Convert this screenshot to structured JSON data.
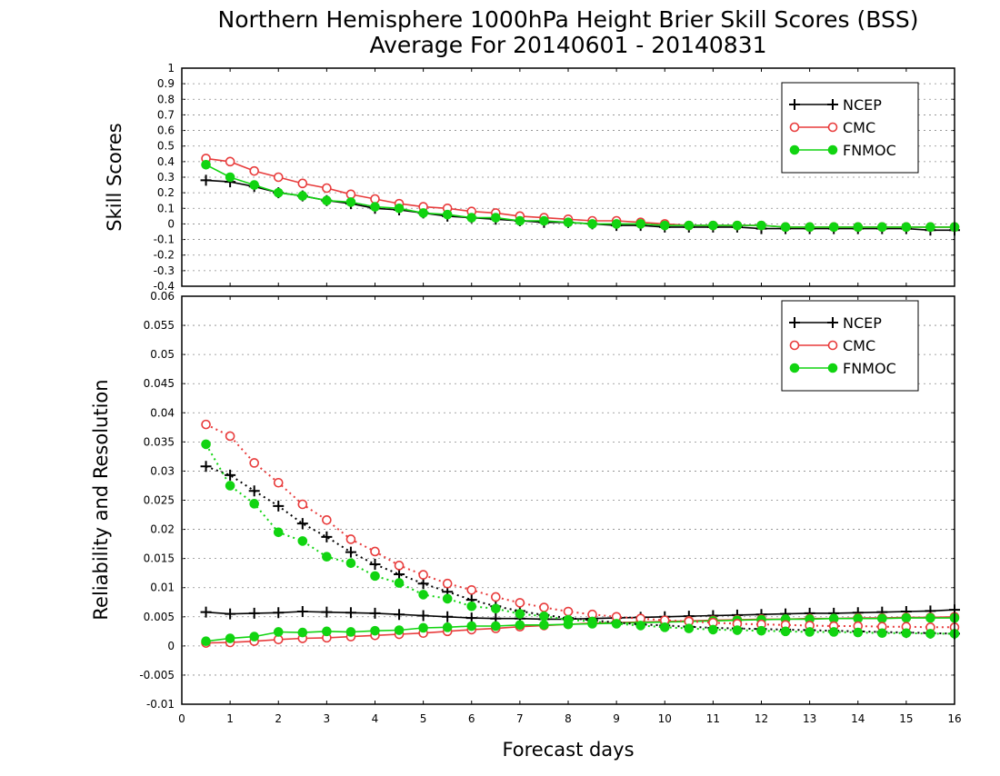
{
  "title_line1": "Northern Hemisphere 1000hPa Height Brier Skill Scores (BSS)",
  "title_line2": "Average For 20140601 - 20140831",
  "xlabel": "Forecast days",
  "colors": {
    "NCEP": "#000000",
    "CMC": "#e83c3c",
    "FNMOC": "#11d411",
    "grid": "#8a8a8a"
  },
  "chart_data": [
    {
      "type": "line",
      "panel": "top",
      "ylabel": "Skill Scores",
      "xlim": [
        0,
        16
      ],
      "ylim": [
        -0.4,
        1
      ],
      "x_ticks": [
        "0",
        "1",
        "2",
        "3",
        "4",
        "5",
        "6",
        "7",
        "8",
        "9",
        "10",
        "11",
        "12",
        "13",
        "14",
        "15",
        "16"
      ],
      "y_ticks": [
        "1",
        "0.9",
        "0.8",
        "0.7",
        "0.6",
        "0.5",
        "0.4",
        "0.3",
        "0.2",
        "0.1",
        "0",
        "-0.1",
        "-0.2",
        "-0.3",
        "-0.4"
      ],
      "grid": "dotted horizontal",
      "legend": "top-right",
      "x": [
        0.5,
        1,
        1.5,
        2,
        2.5,
        3,
        3.5,
        4,
        4.5,
        5,
        5.5,
        6,
        6.5,
        7,
        7.5,
        8,
        8.5,
        9,
        9.5,
        10,
        10.5,
        11,
        11.5,
        12,
        12.5,
        13,
        13.5,
        14,
        14.5,
        15,
        15.5,
        16
      ],
      "series": [
        {
          "name": "NCEP",
          "marker": "plus",
          "fill": false,
          "style": "solid",
          "values": [
            0.28,
            0.27,
            0.24,
            0.2,
            0.18,
            0.15,
            0.13,
            0.1,
            0.09,
            0.07,
            0.05,
            0.04,
            0.03,
            0.02,
            0.01,
            0.01,
            0.0,
            -0.01,
            -0.01,
            -0.02,
            -0.02,
            -0.02,
            -0.02,
            -0.03,
            -0.03,
            -0.03,
            -0.03,
            -0.03,
            -0.03,
            -0.03,
            -0.04,
            -0.04
          ]
        },
        {
          "name": "CMC",
          "marker": "circle",
          "fill": false,
          "style": "solid",
          "values": [
            0.42,
            0.4,
            0.34,
            0.3,
            0.26,
            0.23,
            0.19,
            0.16,
            0.13,
            0.11,
            0.1,
            0.08,
            0.07,
            0.05,
            0.04,
            0.03,
            0.02,
            0.02,
            0.01,
            0.0,
            -0.01,
            -0.01,
            -0.01,
            -0.01,
            -0.02,
            -0.02,
            -0.02,
            -0.02,
            -0.02,
            -0.02,
            -0.02,
            -0.02
          ]
        },
        {
          "name": "FNMOC",
          "marker": "circle",
          "fill": true,
          "style": "solid",
          "values": [
            0.38,
            0.3,
            0.25,
            0.2,
            0.18,
            0.15,
            0.14,
            0.11,
            0.1,
            0.07,
            0.06,
            0.04,
            0.04,
            0.02,
            0.02,
            0.01,
            0.0,
            0.0,
            0.0,
            -0.01,
            -0.01,
            -0.01,
            -0.01,
            -0.01,
            -0.02,
            -0.02,
            -0.02,
            -0.02,
            -0.02,
            -0.02,
            -0.02,
            -0.02
          ]
        }
      ]
    },
    {
      "type": "line",
      "panel": "bottom",
      "ylabel": "Reliability and Resolution",
      "xlim": [
        0,
        16
      ],
      "ylim": [
        -0.01,
        0.06
      ],
      "x_ticks": [
        "0",
        "1",
        "2",
        "3",
        "4",
        "5",
        "6",
        "7",
        "8",
        "9",
        "10",
        "11",
        "12",
        "13",
        "14",
        "15",
        "16"
      ],
      "y_ticks": [
        "0.06",
        "0.055",
        "0.05",
        "0.045",
        "0.04",
        "0.035",
        "0.03",
        "0.025",
        "0.02",
        "0.015",
        "0.01",
        "0.005",
        "0",
        "-0.005",
        "-0.01"
      ],
      "grid": "dotted horizontal",
      "legend": "top-right",
      "x": [
        0.5,
        1,
        1.5,
        2,
        2.5,
        3,
        3.5,
        4,
        4.5,
        5,
        5.5,
        6,
        6.5,
        7,
        7.5,
        8,
        8.5,
        9,
        9.5,
        10,
        10.5,
        11,
        11.5,
        12,
        12.5,
        13,
        13.5,
        14,
        14.5,
        15,
        15.5,
        16
      ],
      "series": [
        {
          "name": "NCEP",
          "legend": true,
          "marker": "plus",
          "fill": false,
          "style": "solid",
          "values": [
            0.0058,
            0.0055,
            0.0056,
            0.0057,
            0.0059,
            0.0058,
            0.0057,
            0.0056,
            0.0054,
            0.0052,
            0.005,
            0.0048,
            0.0047,
            0.0047,
            0.0046,
            0.0046,
            0.0047,
            0.0048,
            0.0049,
            0.005,
            0.0051,
            0.0052,
            0.0053,
            0.0054,
            0.0055,
            0.0056,
            0.0056,
            0.0057,
            0.0058,
            0.0059,
            0.006,
            0.0062
          ]
        },
        {
          "name": "CMC",
          "legend": true,
          "marker": "circle",
          "fill": false,
          "style": "solid",
          "values": [
            0.0005,
            0.0006,
            0.0008,
            0.0011,
            0.0013,
            0.0014,
            0.0016,
            0.0018,
            0.002,
            0.0022,
            0.0025,
            0.0028,
            0.003,
            0.0033,
            0.0035,
            0.0037,
            0.0039,
            0.004,
            0.0041,
            0.0042,
            0.0043,
            0.0044,
            0.0045,
            0.0046,
            0.0046,
            0.0047,
            0.0047,
            0.0048,
            0.0048,
            0.0049,
            0.0049,
            0.005
          ]
        },
        {
          "name": "FNMOC",
          "legend": true,
          "marker": "circle",
          "fill": true,
          "style": "solid",
          "values": [
            0.0008,
            0.0013,
            0.0016,
            0.0024,
            0.0023,
            0.0025,
            0.0024,
            0.0026,
            0.0027,
            0.0031,
            0.0032,
            0.0034,
            0.0034,
            0.0036,
            0.0036,
            0.0037,
            0.0038,
            0.0039,
            0.004,
            0.0041,
            0.0042,
            0.0043,
            0.0044,
            0.0045,
            0.0046,
            0.0046,
            0.0047,
            0.0047,
            0.0047,
            0.0048,
            0.0048,
            0.0048
          ]
        },
        {
          "name": "NCEP",
          "legend": false,
          "marker": "plus",
          "fill": false,
          "style": "dotted",
          "values": [
            0.0308,
            0.0293,
            0.0266,
            0.024,
            0.021,
            0.0187,
            0.0161,
            0.014,
            0.0123,
            0.0107,
            0.0093,
            0.0079,
            0.0068,
            0.006,
            0.0053,
            0.0048,
            0.0044,
            0.004,
            0.0037,
            0.0035,
            0.0033,
            0.0031,
            0.003,
            0.0029,
            0.0028,
            0.0027,
            0.0026,
            0.0025,
            0.0024,
            0.0023,
            0.0022,
            0.0021
          ]
        },
        {
          "name": "CMC",
          "legend": false,
          "marker": "circle",
          "fill": false,
          "style": "dotted",
          "values": [
            0.038,
            0.036,
            0.0314,
            0.028,
            0.0243,
            0.0216,
            0.0183,
            0.0162,
            0.0138,
            0.0122,
            0.0107,
            0.0096,
            0.0084,
            0.0074,
            0.0066,
            0.0059,
            0.0054,
            0.005,
            0.0047,
            0.0044,
            0.0042,
            0.004,
            0.0038,
            0.0037,
            0.0036,
            0.0035,
            0.0034,
            0.0034,
            0.0033,
            0.0033,
            0.0032,
            0.0032
          ]
        },
        {
          "name": "FNMOC",
          "legend": false,
          "marker": "circle",
          "fill": true,
          "style": "dotted",
          "values": [
            0.0346,
            0.0275,
            0.0244,
            0.0195,
            0.018,
            0.0153,
            0.0142,
            0.012,
            0.0108,
            0.0088,
            0.0081,
            0.0068,
            0.0064,
            0.0055,
            0.0051,
            0.0045,
            0.0042,
            0.0038,
            0.0035,
            0.0032,
            0.003,
            0.0028,
            0.0027,
            0.0026,
            0.0025,
            0.0024,
            0.0024,
            0.0023,
            0.0022,
            0.0022,
            0.0021,
            0.0021
          ]
        }
      ]
    }
  ]
}
